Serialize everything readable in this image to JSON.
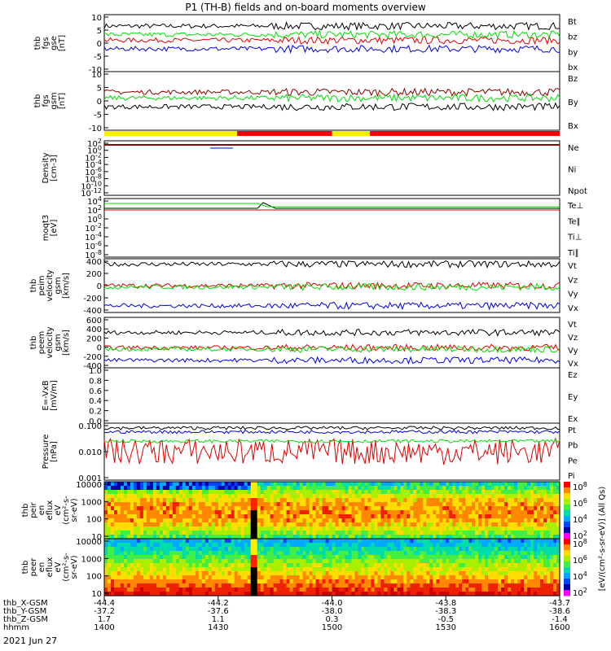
{
  "title": "P1 (TH-B) fields and on-board moments overview",
  "date_label": "2021 Jun 27",
  "colors": {
    "black": "#000000",
    "red": "#dd0000",
    "green": "#00dd00",
    "blue": "#0000dd",
    "darkred": "#880000",
    "yellow": "#ffee00",
    "barred": "#ee0000"
  },
  "chart_data": [
    {
      "type": "line",
      "panel": "fgs_gse",
      "ylabel": [
        "thb",
        "fgs",
        "gse",
        "[nT]"
      ],
      "ylim": [
        -10,
        10
      ],
      "yticks": [
        "10",
        "5",
        "0",
        "-5",
        "-10"
      ],
      "series": [
        {
          "name": "Bt",
          "color": "#000000",
          "level": 6
        },
        {
          "name": "bz",
          "color": "#dd0000",
          "level": 1
        },
        {
          "name": "by",
          "color": "#00dd00",
          "level": 3
        },
        {
          "name": "bx",
          "color": "#0000dd",
          "level": -2
        }
      ]
    },
    {
      "type": "line",
      "panel": "fgs_gsm",
      "ylabel": [
        "thb",
        "fgs",
        "gsm",
        "[nT]"
      ],
      "ylim": [
        -10,
        10
      ],
      "yticks": [
        "10",
        "5",
        "0",
        "-5",
        "-10"
      ],
      "series": [
        {
          "name": "Bz",
          "color": "#880000",
          "level": 3
        },
        {
          "name": "By",
          "color": "#00dd00",
          "level": 1
        },
        {
          "name": "Bx",
          "color": "#000000",
          "level": -2
        }
      ]
    },
    {
      "type": "bar",
      "panel": "mode_bar",
      "segments": [
        {
          "x0": 1400,
          "x1": 1435,
          "color": "#ffee00"
        },
        {
          "x0": 1435,
          "x1": 1500,
          "color": "#ee0000"
        },
        {
          "x0": 1500,
          "x1": 1510,
          "color": "#ffee00"
        },
        {
          "x0": 1510,
          "x1": 1600,
          "color": "#ee0000"
        }
      ]
    },
    {
      "type": "line",
      "panel": "density",
      "ylabel": [
        "Density",
        "[cm-3]"
      ],
      "ylim_log": [
        -14,
        3
      ],
      "yticks": [
        "10^2",
        "10^0",
        "10^-2",
        "10^-4",
        "10^-6",
        "10^-8",
        "10^-10",
        "10^-12"
      ],
      "series": [
        {
          "name": "Ne",
          "color": "#dd0000"
        },
        {
          "name": "Ni",
          "color": "#000000"
        },
        {
          "name": "Npot",
          "color": "#0000dd"
        }
      ]
    },
    {
      "type": "line",
      "panel": "temperature",
      "ylabel": [
        "moqt3",
        "[eV]"
      ],
      "ylim_log": [
        -9,
        4
      ],
      "yticks": [
        "10^4",
        "10^2",
        "10^0",
        "10^-2",
        "10^-4",
        "10^-6",
        "10^-8"
      ],
      "series": [
        {
          "name": "Te⊥",
          "color": "#dd0000"
        },
        {
          "name": "Te∥",
          "color": "#000000"
        },
        {
          "name": "Ti⊥",
          "color": "#0000dd"
        },
        {
          "name": "Ti∥",
          "color": "#00dd00"
        }
      ]
    },
    {
      "type": "line",
      "panel": "peim_velocity",
      "ylabel": [
        "thb",
        "peim",
        "velocity",
        "gsm",
        "[km/s]"
      ],
      "ylim": [
        -400,
        400
      ],
      "yticks": [
        "400",
        "200",
        "0",
        "-200",
        "-400"
      ],
      "series": [
        {
          "name": "Vt",
          "color": "#000000",
          "level": 320
        },
        {
          "name": "Vz",
          "color": "#dd0000",
          "level": 0
        },
        {
          "name": "Vy",
          "color": "#00dd00",
          "level": -20
        },
        {
          "name": "Vx",
          "color": "#0000dd",
          "level": -300
        }
      ]
    },
    {
      "type": "line",
      "panel": "peem_velocity",
      "ylabel": [
        "thb",
        "peem",
        "velocity",
        "gsm",
        "[km/s]"
      ],
      "ylim": [
        -400,
        600
      ],
      "yticks": [
        "600",
        "400",
        "200",
        "0",
        "-200",
        "-400"
      ],
      "series": [
        {
          "name": "Vt",
          "color": "#000000",
          "level": 300
        },
        {
          "name": "Vz",
          "color": "#dd0000",
          "level": 0
        },
        {
          "name": "Vy",
          "color": "#00dd00",
          "level": -30
        },
        {
          "name": "Vx",
          "color": "#0000dd",
          "level": -250
        }
      ]
    },
    {
      "type": "line",
      "panel": "e_field",
      "ylabel": [
        "E=-VxB",
        "[mV/m]"
      ],
      "ylim": [
        0,
        1
      ],
      "yticks": [
        "1.0",
        "0.8",
        "0.6",
        "0.4",
        "0.2",
        "0.0"
      ],
      "series": [
        {
          "name": "Ez",
          "color": "#dd0000"
        },
        {
          "name": "Ey",
          "color": "#00dd00"
        },
        {
          "name": "Ex",
          "color": "#0000dd"
        }
      ]
    },
    {
      "type": "line",
      "panel": "pressure",
      "ylabel": [
        "Pressure",
        "[nPa]"
      ],
      "yticks": [
        "0.100",
        "0.010",
        "0.001"
      ],
      "series": [
        {
          "name": "Pt",
          "color": "#000000",
          "level": 0.12
        },
        {
          "name": "Pb",
          "color": "#dd0000",
          "level": 0.01
        },
        {
          "name": "Pe",
          "color": "#00dd00",
          "level": 0.03
        },
        {
          "name": "Pi",
          "color": "#0000dd",
          "level": 0.08
        }
      ]
    },
    {
      "type": "heatmap",
      "panel": "peir_spectrum",
      "ylabel": [
        "thb",
        "peir",
        "en",
        "eflux",
        "eV",
        "(cm^2-s-",
        "sr-eV)"
      ],
      "yticks": [
        "10000",
        "1000",
        "100",
        "10"
      ]
    },
    {
      "type": "heatmap",
      "panel": "peer_spectrum",
      "ylabel": [
        "thb",
        "peer",
        "en",
        "eflux",
        "eV",
        "(cm^2-s-",
        "sr-eV)"
      ],
      "yticks": [
        "10000",
        "1000",
        "100",
        "10"
      ]
    }
  ],
  "colorbar": {
    "label": "[eV/(cm^2-s-sr-eV)]  (All Qs)",
    "ticks_top": [
      "10^8",
      "10^6",
      "10^4",
      "10^2"
    ],
    "ticks_bottom": [
      "10^8",
      "10^6",
      "10^4",
      "10^2"
    ]
  },
  "x_axis": {
    "ticks": [
      "1400",
      "1430",
      "1500",
      "1530",
      "1600"
    ],
    "rows": [
      {
        "label": "thb_X-GSM",
        "values": [
          "-44.4",
          "-44.2",
          "-44.0",
          "-43.8",
          "-43.7"
        ]
      },
      {
        "label": "thb_Y-GSM",
        "values": [
          "-37.2",
          "-37.6",
          "-38.0",
          "-38.3",
          "-38.6"
        ]
      },
      {
        "label": "thb_Z-GSM",
        "values": [
          "1.7",
          "1.1",
          "0.3",
          "-0.5",
          "-1.4"
        ]
      },
      {
        "label": "hhmm",
        "values": [
          "1400",
          "1430",
          "1500",
          "1530",
          "1600"
        ]
      }
    ]
  }
}
